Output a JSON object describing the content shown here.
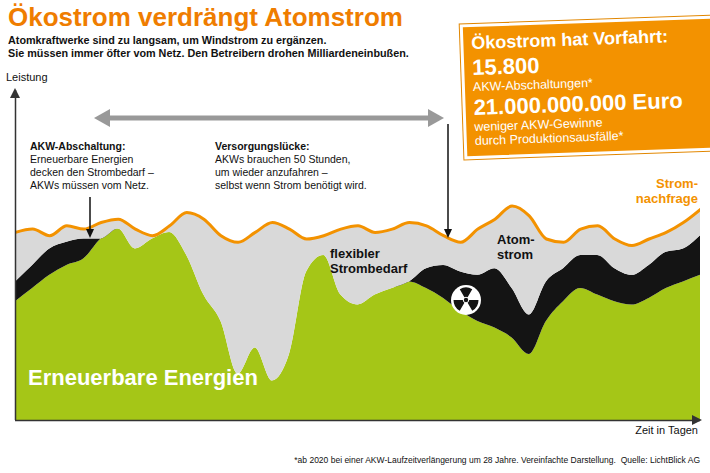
{
  "chart_data": {
    "type": "area",
    "title": "Ökostrom verdrängt Atomstrom",
    "subtitle": "Atomkraftwerke sind zu langsam, um Windstrom zu ergänzen.\nSie müssen immer öfter vom Netz. Den Betreibern drohen Milliardeneinbußen.",
    "x_label": "Zeit in Tagen",
    "y_label": "Leistung",
    "tick_labels": false,
    "stacked": true,
    "xlim": [
      0,
      100
    ],
    "ylim": [
      0,
      100
    ],
    "x": [
      0,
      2.5,
      5,
      7.5,
      10,
      12.5,
      15,
      17.5,
      20,
      22.5,
      25,
      27.5,
      30,
      32.5,
      35,
      37.5,
      40,
      42.5,
      45,
      47.5,
      50,
      52.5,
      55,
      57.5,
      60,
      62.5,
      65,
      67.5,
      70,
      72.5,
      75,
      77.5,
      80,
      82.5,
      85,
      87.5,
      90,
      92.5,
      95,
      97.5,
      100
    ],
    "series": [
      {
        "name": "Erneuerbare Energien",
        "type": "area",
        "color": "#a5c617",
        "values": [
          36,
          40,
          44,
          47,
          49,
          55,
          58,
          52,
          55,
          57,
          50,
          38,
          30,
          14,
          22,
          12,
          20,
          45,
          50,
          38,
          35,
          38,
          40,
          42,
          40,
          37,
          33,
          30,
          28,
          25,
          20,
          30,
          36,
          40,
          38,
          36,
          35,
          37,
          40,
          42,
          44
        ]
      },
      {
        "name": "Atom-\nstrom",
        "type": "area",
        "color": "#141414",
        "values": [
          6,
          7,
          8,
          7,
          6,
          0,
          0,
          0,
          0,
          0,
          0,
          0,
          0,
          0,
          0,
          0,
          0,
          0,
          0,
          0,
          0,
          0,
          0,
          0,
          6,
          10,
          12,
          14,
          18,
          15,
          12,
          12,
          10,
          10,
          12,
          10,
          9,
          10,
          11,
          10,
          12
        ]
      },
      {
        "name": "flexibler\nStrombedarf",
        "type": "area",
        "color": "#d9d9d9",
        "values": [
          15,
          11,
          4,
          5,
          3,
          5,
          3,
          6,
          1,
          2,
          13,
          23,
          26,
          40,
          35,
          48,
          38,
          10,
          6,
          20,
          24,
          19,
          18,
          18,
          13,
          9,
          9,
          14,
          15,
          25,
          30,
          13,
          8,
          8,
          9,
          9,
          9,
          8,
          6,
          8,
          8
        ]
      },
      {
        "name": "Strom-\nnachfrage",
        "type": "line",
        "color": "#f39200",
        "values": [
          57,
          58,
          56,
          59,
          58,
          60,
          61,
          58,
          56,
          59,
          63,
          61,
          56,
          54,
          57,
          60,
          58,
          55,
          56,
          58,
          59,
          57,
          58,
          60,
          59,
          56,
          54,
          58,
          61,
          65,
          62,
          55,
          54,
          58,
          59,
          55,
          53,
          55,
          57,
          60,
          64
        ]
      }
    ],
    "annotations": [
      {
        "title": "AKW-Abschaltung:",
        "text": "Erneuerbare Energien\ndecken den Strombedarf –\nAKWs müssen vom Netz."
      },
      {
        "title": "Versorgungslücke:",
        "text": "AKWs brauchen 50 Stunden,\num wieder anzufahren –\nselbst wenn Strom benötigt wird."
      }
    ],
    "info_box": {
      "title": "Ökostrom hat Vorfahrt:",
      "items": [
        {
          "value": "15.800",
          "label": "AKW-Abschaltungen*"
        },
        {
          "value": "21.000.000.000 Euro",
          "label": "weniger AKW-Gewinne\ndurch Produktionsausfälle*"
        }
      ]
    },
    "footnote": "*ab 2020 bei einer AKW-Laufzeitverlängerung um 28 Jahre. Vereinfachte Darstellung.  Quelle: LichtBlick AG"
  }
}
